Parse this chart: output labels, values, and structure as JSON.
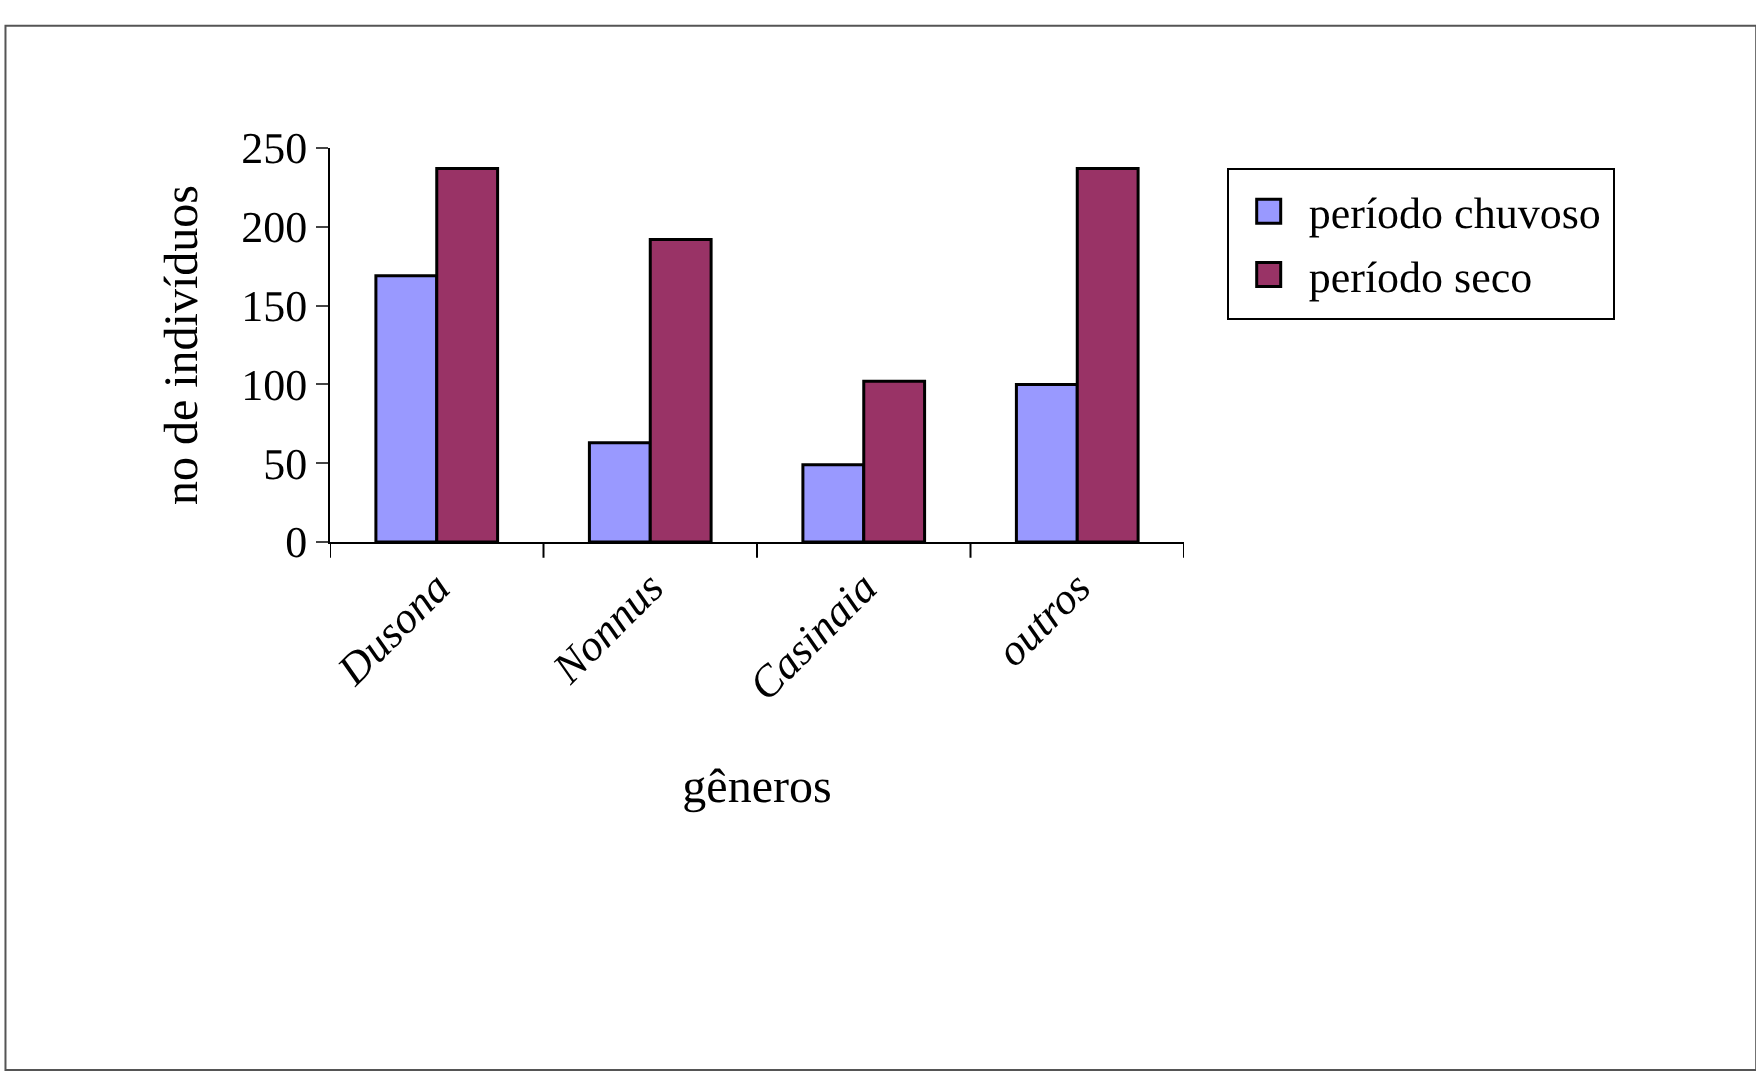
{
  "chart_data": {
    "type": "bar",
    "xlabel": "gêneros",
    "ylabel": "no de indivíduos",
    "categories": [
      "Dusona",
      "Nonnus",
      "Casinaia",
      "outros"
    ],
    "series": [
      {
        "name": "período chuvoso",
        "color": "#9999ff",
        "values": [
          169,
          63,
          49,
          100
        ]
      },
      {
        "name": "período seco",
        "color": "#993366",
        "values": [
          237,
          192,
          102,
          237
        ]
      }
    ],
    "ylim": [
      0,
      250
    ],
    "yticks": [
      0,
      50,
      100,
      150,
      200,
      250
    ],
    "legend": "right"
  }
}
